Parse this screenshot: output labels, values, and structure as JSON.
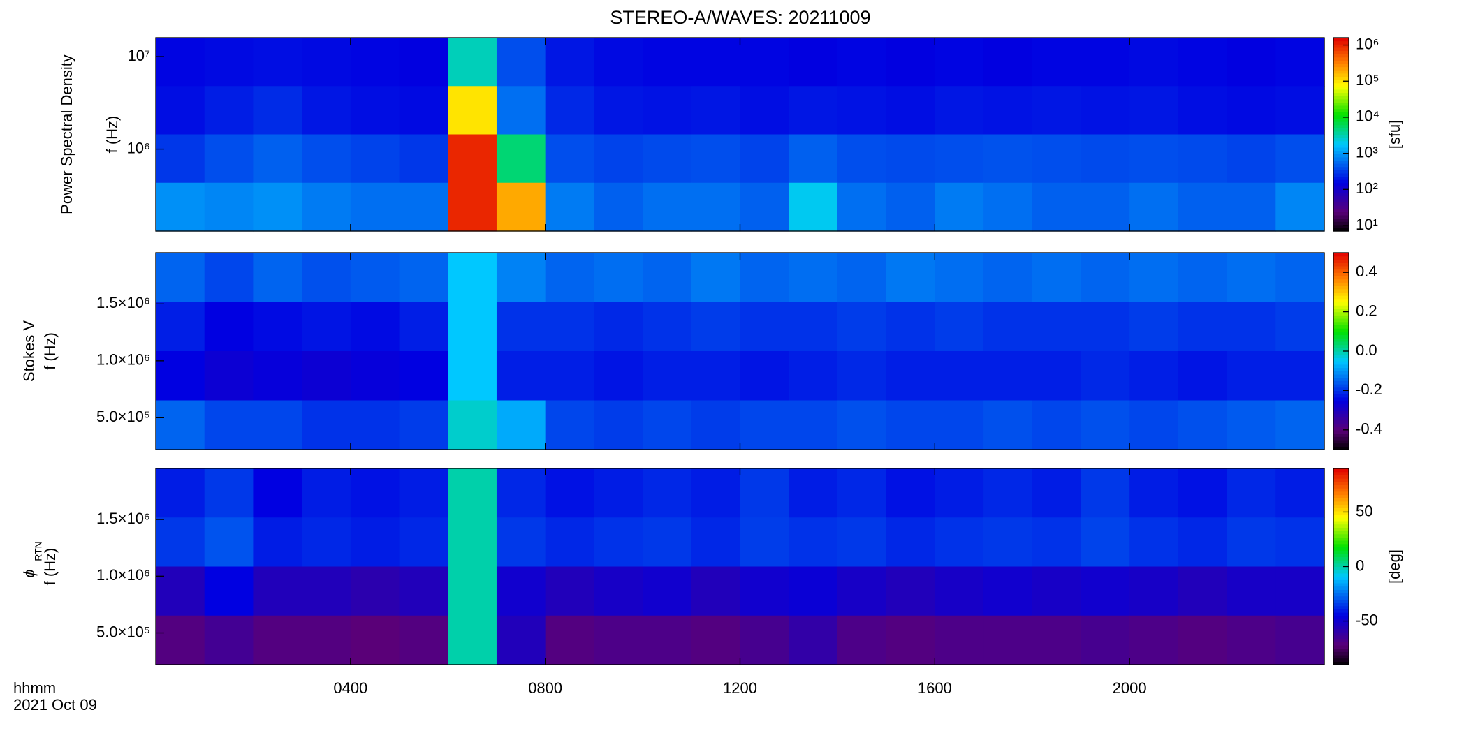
{
  "chart_data": [
    {
      "type": "heatmap",
      "title": "STEREO-A/WAVES: 20211009",
      "ylabel_name": "Power Spectral Density",
      "ylabel": "f (Hz)",
      "ylog": true,
      "ylim": [
        130000,
        16000000
      ],
      "yticks": [
        {
          "value": 1000000,
          "label": "10⁶"
        },
        {
          "value": 10000000,
          "label": "10⁷"
        }
      ],
      "xlim": [
        0,
        24
      ],
      "colormap": "rainbow",
      "clog": true,
      "clim": [
        7,
        1600000
      ],
      "cticks": [
        {
          "value": 10,
          "label": "10¹"
        },
        {
          "value": 100,
          "label": "10²"
        },
        {
          "value": 1000,
          "label": "10³"
        },
        {
          "value": 10000,
          "label": "10⁴"
        },
        {
          "value": 100000,
          "label": "10⁵"
        },
        {
          "value": 1000000,
          "label": "10⁶"
        }
      ],
      "clabel": "[sfu]",
      "z": [
        [
          160,
          170,
          180,
          170,
          160,
          150,
          3000,
          400,
          200,
          170,
          160,
          160,
          160,
          150,
          160,
          150,
          160,
          150,
          160,
          160,
          170,
          160,
          150,
          160
        ],
        [
          180,
          220,
          260,
          200,
          180,
          170,
          100000,
          600,
          250,
          200,
          190,
          200,
          180,
          200,
          190,
          180,
          200,
          190,
          200,
          190,
          200,
          180,
          170,
          180
        ],
        [
          300,
          400,
          500,
          400,
          350,
          300,
          1000000,
          5000,
          400,
          350,
          380,
          400,
          350,
          500,
          400,
          380,
          400,
          420,
          400,
          380,
          400,
          380,
          350,
          400
        ],
        [
          900,
          800,
          900,
          700,
          600,
          600,
          1000000,
          200000,
          700,
          500,
          600,
          600,
          500,
          2000,
          600,
          500,
          700,
          600,
          500,
          500,
          600,
          500,
          500,
          800
        ]
      ]
    },
    {
      "type": "heatmap",
      "ylabel_name": "Stokes V",
      "ylabel": "f (Hz)",
      "ylog": false,
      "ylim": [
        220000,
        1950000
      ],
      "yticks": [
        {
          "value": 500000,
          "label": "5.0×10⁵"
        },
        {
          "value": 1000000,
          "label": "1.0×10⁶"
        },
        {
          "value": 1500000,
          "label": "1.5×10⁶"
        }
      ],
      "xlim": [
        0,
        24
      ],
      "colormap": "rainbow",
      "clog": false,
      "clim": [
        -0.5,
        0.5
      ],
      "cticks": [
        -0.4,
        -0.2,
        {
          "value": 0,
          "label": "0.0"
        },
        0.2,
        0.4
      ],
      "z": [
        [
          -0.15,
          -0.18,
          -0.15,
          -0.17,
          -0.16,
          -0.15,
          -0.05,
          -0.12,
          -0.15,
          -0.14,
          -0.15,
          -0.13,
          -0.15,
          -0.14,
          -0.15,
          -0.13,
          -0.14,
          -0.15,
          -0.14,
          -0.15,
          -0.14,
          -0.15,
          -0.14,
          -0.15
        ],
        [
          -0.22,
          -0.25,
          -0.24,
          -0.23,
          -0.24,
          -0.22,
          -0.05,
          -0.2,
          -0.2,
          -0.21,
          -0.2,
          -0.19,
          -0.2,
          -0.2,
          -0.19,
          -0.2,
          -0.19,
          -0.2,
          -0.2,
          -0.2,
          -0.19,
          -0.2,
          -0.2,
          -0.19
        ],
        [
          -0.25,
          -0.27,
          -0.26,
          -0.27,
          -0.26,
          -0.25,
          -0.05,
          -0.22,
          -0.22,
          -0.23,
          -0.22,
          -0.22,
          -0.23,
          -0.22,
          -0.21,
          -0.22,
          -0.22,
          -0.22,
          -0.22,
          -0.21,
          -0.22,
          -0.23,
          -0.22,
          -0.22
        ],
        [
          -0.15,
          -0.18,
          -0.18,
          -0.2,
          -0.2,
          -0.19,
          -0.02,
          -0.08,
          -0.18,
          -0.19,
          -0.18,
          -0.19,
          -0.18,
          -0.18,
          -0.17,
          -0.18,
          -0.18,
          -0.17,
          -0.18,
          -0.17,
          -0.18,
          -0.17,
          -0.16,
          -0.15
        ]
      ]
    },
    {
      "type": "heatmap",
      "ylabel_symbol": "ϕ",
      "ylabel_sub": "RTN",
      "ylabel": "f (Hz)",
      "ylog": false,
      "ylim": [
        220000,
        1950000
      ],
      "yticks": [
        {
          "value": 500000,
          "label": "5.0×10⁵"
        },
        {
          "value": 1000000,
          "label": "1.0×10⁶"
        },
        {
          "value": 1500000,
          "label": "1.5×10⁶"
        }
      ],
      "xlim": [
        0,
        24
      ],
      "xticks": [
        {
          "value": 4,
          "label": "0400"
        },
        {
          "value": 8,
          "label": "0800"
        },
        {
          "value": 12,
          "label": "1200"
        },
        {
          "value": 16,
          "label": "1600"
        },
        {
          "value": 20,
          "label": "2000"
        }
      ],
      "time_label": "hhmm",
      "date_label": "2021 Oct 09",
      "colormap": "rainbow",
      "clog": false,
      "clim": [
        -90,
        90
      ],
      "cticks": [
        -50,
        0,
        50
      ],
      "clabel": "[deg]",
      "z": [
        [
          -40,
          -35,
          -45,
          -40,
          -42,
          -40,
          0,
          -38,
          -42,
          -40,
          -38,
          -40,
          -35,
          -40,
          -38,
          -42,
          -40,
          -38,
          -40,
          -35,
          -40,
          -42,
          -38,
          -40
        ],
        [
          -35,
          -30,
          -40,
          -38,
          -40,
          -38,
          0,
          -35,
          -38,
          -36,
          -35,
          -38,
          -34,
          -36,
          -35,
          -38,
          -36,
          -35,
          -36,
          -33,
          -36,
          -38,
          -35,
          -36
        ],
        [
          -55,
          -45,
          -55,
          -55,
          -58,
          -55,
          0,
          -50,
          -55,
          -52,
          -50,
          -55,
          -50,
          -48,
          -52,
          -55,
          -52,
          -50,
          -52,
          -50,
          -52,
          -55,
          -52,
          -52
        ],
        [
          -70,
          -65,
          -70,
          -70,
          -72,
          -70,
          0,
          -55,
          -70,
          -68,
          -68,
          -70,
          -66,
          -60,
          -68,
          -70,
          -68,
          -68,
          -68,
          -66,
          -68,
          -70,
          -68,
          -66
        ]
      ]
    }
  ]
}
